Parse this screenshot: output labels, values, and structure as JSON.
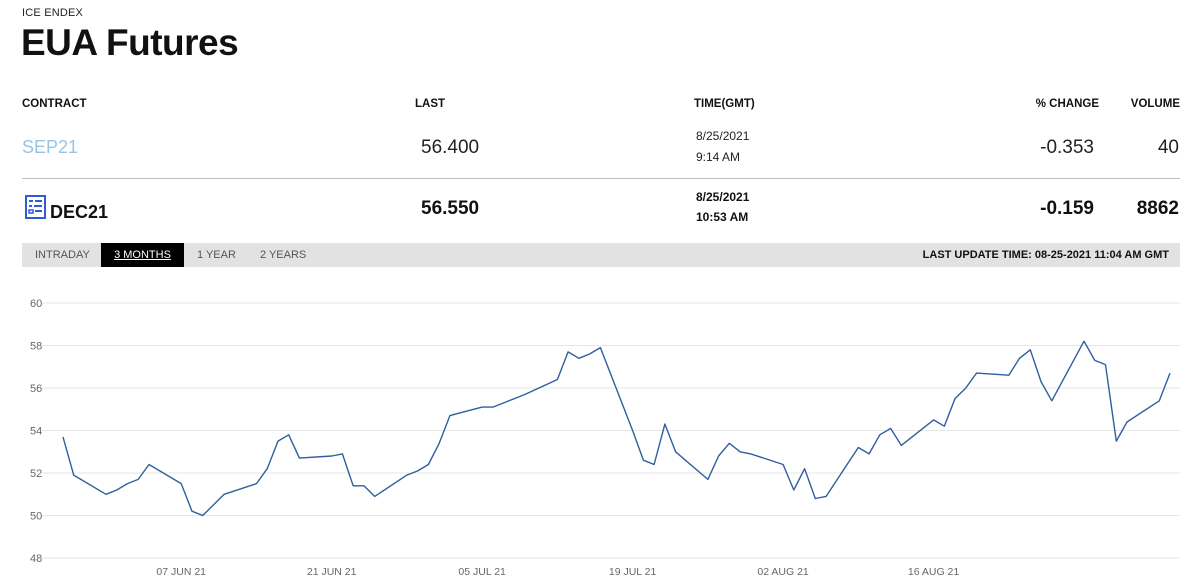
{
  "header": {
    "eyebrow": "ICE ENDEX",
    "title": "EUA Futures"
  },
  "table": {
    "columns": {
      "contract": "CONTRACT",
      "last": "LAST",
      "time": "TIME(GMT)",
      "change": "% CHANGE",
      "volume": "VOLUME"
    },
    "rows": [
      {
        "contract": "SEP21",
        "last": "56.400",
        "date": "8/25/2021",
        "time": "9:14 AM",
        "change": "-0.353",
        "volume": "40"
      },
      {
        "contract": "DEC21",
        "last": "56.550",
        "date": "8/25/2021",
        "time": "10:53 AM",
        "change": "-0.159",
        "volume": "8862",
        "icon": "document-chart-icon"
      }
    ]
  },
  "tabs": [
    "INTRADAY",
    "3 MONTHS",
    "1 YEAR",
    "2 YEARS"
  ],
  "active_tab": "3 MONTHS",
  "last_update": "LAST UPDATE TIME: 08-25-2021 11:04 AM GMT",
  "colors": {
    "line": "#2f5f9e",
    "link": "#9ac4e3",
    "gridline": "#e6e6e6",
    "tabbar": "#e2e2e2"
  },
  "chart_data": {
    "type": "line",
    "title": "",
    "xlabel": "",
    "ylabel": "",
    "ylim": [
      48,
      60
    ],
    "yticks": [
      48,
      50,
      52,
      54,
      56,
      58,
      60
    ],
    "grid": true,
    "xtick_labels": [
      "07 JUN 21",
      "21 JUN 21",
      "05 JUL 21",
      "19 JUL 21",
      "02 AUG 21",
      "16 AUG 21"
    ],
    "xtick_dates": [
      "2021-06-07",
      "2021-06-21",
      "2021-07-05",
      "2021-07-19",
      "2021-08-02",
      "2021-08-16"
    ],
    "series": [
      {
        "name": "",
        "points": [
          [
            "2021-05-27",
            53.7
          ],
          [
            "2021-05-28",
            51.9
          ],
          [
            "2021-05-31",
            51.0
          ],
          [
            "2021-06-01",
            51.2
          ],
          [
            "2021-06-02",
            51.5
          ],
          [
            "2021-06-03",
            51.7
          ],
          [
            "2021-06-04",
            52.4
          ],
          [
            "2021-06-07",
            51.5
          ],
          [
            "2021-06-08",
            50.2
          ],
          [
            "2021-06-09",
            50.0
          ],
          [
            "2021-06-10",
            50.5
          ],
          [
            "2021-06-11",
            51.0
          ],
          [
            "2021-06-14",
            51.5
          ],
          [
            "2021-06-15",
            52.2
          ],
          [
            "2021-06-16",
            53.5
          ],
          [
            "2021-06-17",
            53.8
          ],
          [
            "2021-06-18",
            52.7
          ],
          [
            "2021-06-21",
            52.8
          ],
          [
            "2021-06-22",
            52.9
          ],
          [
            "2021-06-23",
            51.4
          ],
          [
            "2021-06-24",
            51.4
          ],
          [
            "2021-06-25",
            50.9
          ],
          [
            "2021-06-28",
            51.9
          ],
          [
            "2021-06-29",
            52.1
          ],
          [
            "2021-06-30",
            52.4
          ],
          [
            "2021-07-01",
            53.4
          ],
          [
            "2021-07-02",
            54.7
          ],
          [
            "2021-07-05",
            55.1
          ],
          [
            "2021-07-06",
            55.1
          ],
          [
            "2021-07-07",
            55.3
          ],
          [
            "2021-07-08",
            55.5
          ],
          [
            "2021-07-09",
            55.7
          ],
          [
            "2021-07-12",
            56.4
          ],
          [
            "2021-07-13",
            57.7
          ],
          [
            "2021-07-14",
            57.4
          ],
          [
            "2021-07-15",
            57.6
          ],
          [
            "2021-07-16",
            57.9
          ],
          [
            "2021-07-19",
            54.0
          ],
          [
            "2021-07-20",
            52.6
          ],
          [
            "2021-07-21",
            52.4
          ],
          [
            "2021-07-22",
            54.3
          ],
          [
            "2021-07-23",
            53.0
          ],
          [
            "2021-07-26",
            51.7
          ],
          [
            "2021-07-27",
            52.8
          ],
          [
            "2021-07-28",
            53.4
          ],
          [
            "2021-07-29",
            53.0
          ],
          [
            "2021-07-30",
            52.9
          ],
          [
            "2021-08-02",
            52.4
          ],
          [
            "2021-08-03",
            51.2
          ],
          [
            "2021-08-04",
            52.2
          ],
          [
            "2021-08-05",
            50.8
          ],
          [
            "2021-08-06",
            50.9
          ],
          [
            "2021-08-09",
            53.2
          ],
          [
            "2021-08-10",
            52.9
          ],
          [
            "2021-08-11",
            53.8
          ],
          [
            "2021-08-12",
            54.1
          ],
          [
            "2021-08-13",
            53.3
          ],
          [
            "2021-08-16",
            54.5
          ],
          [
            "2021-08-17",
            54.2
          ],
          [
            "2021-08-18",
            55.5
          ],
          [
            "2021-08-19",
            56.0
          ],
          [
            "2021-08-20",
            56.7
          ],
          [
            "2021-08-23",
            56.6
          ],
          [
            "2021-08-24",
            57.4
          ],
          [
            "2021-08-25",
            57.8
          ],
          [
            "2021-08-26",
            56.3
          ],
          [
            "2021-08-27",
            55.4
          ],
          [
            "2021-08-30",
            58.2
          ],
          [
            "2021-08-31",
            57.3
          ],
          [
            "2021-09-01",
            57.1
          ],
          [
            "2021-09-02",
            53.5
          ],
          [
            "2021-09-03",
            54.4
          ],
          [
            "2021-09-06",
            55.4
          ],
          [
            "2021-09-07",
            56.7
          ]
        ]
      }
    ]
  }
}
